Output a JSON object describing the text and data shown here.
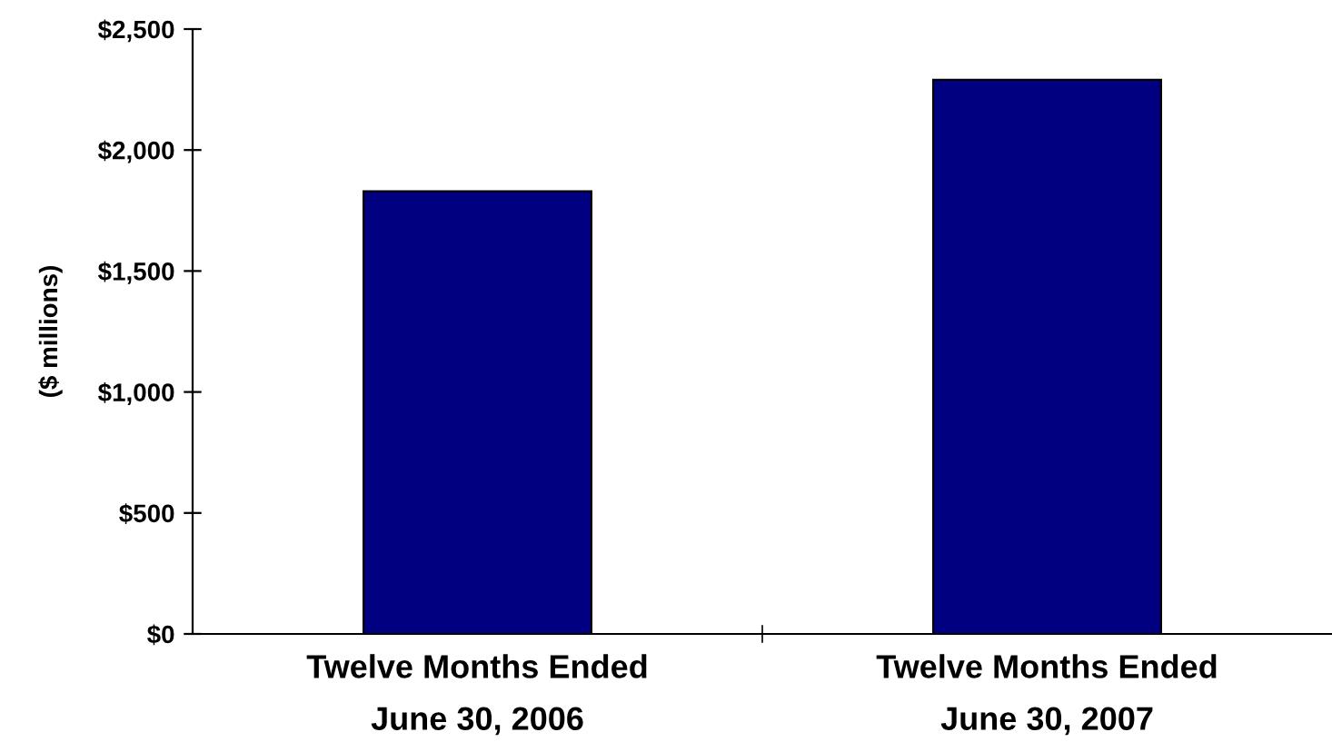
{
  "chart_data": {
    "type": "bar",
    "ylabel": "($ millions)",
    "categories": [
      "Twelve Months Ended\nJune 30, 2006",
      "Twelve Months Ended\nJune 30, 2007"
    ],
    "values": [
      1830,
      2290
    ],
    "color": "#000080",
    "ylim": [
      0,
      2500
    ],
    "yticks": [
      {
        "value": 0,
        "label": "$0"
      },
      {
        "value": 500,
        "label": "$500"
      },
      {
        "value": 1000,
        "label": "$1,000"
      },
      {
        "value": 1500,
        "label": "$1,500"
      },
      {
        "value": 2000,
        "label": "$2,000"
      },
      {
        "value": 2500,
        "label": "$2,500"
      }
    ],
    "grid": false
  }
}
